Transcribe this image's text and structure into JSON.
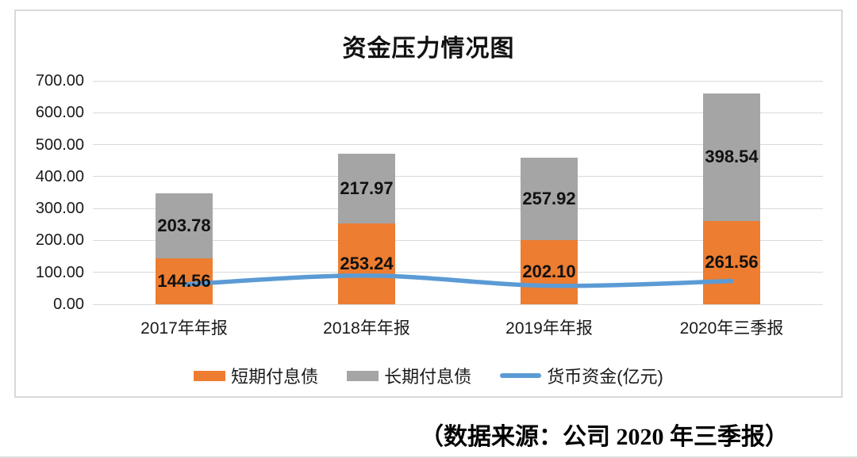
{
  "chart_data": {
    "type": "bar",
    "subtype": "stacked-bar-with-line-overlay",
    "title": "资金压力情况图",
    "categories": [
      "2017年年报",
      "2018年年报",
      "2019年年报",
      "2020年三季报"
    ],
    "series": [
      {
        "name": "短期付息债",
        "type": "bar",
        "color": "#ED7D31",
        "values": [
          144.56,
          253.24,
          202.1,
          261.56
        ]
      },
      {
        "name": "长期付息债",
        "type": "bar",
        "color": "#A5A5A5",
        "values": [
          203.78,
          217.97,
          257.92,
          398.54
        ]
      },
      {
        "name": "货币资金(亿元)",
        "type": "line",
        "color": "#5B9BD5",
        "values": [
          62,
          90,
          58,
          73
        ]
      }
    ],
    "stacked": true,
    "data_labels": true,
    "data_label_format": "2-decimals",
    "ylim": [
      0,
      700
    ],
    "yticks": [
      "0.00",
      "100.00",
      "200.00",
      "300.00",
      "400.00",
      "500.00",
      "600.00",
      "700.00"
    ],
    "grid": true,
    "legend_position": "bottom"
  },
  "page": {
    "source_note": "（数据来源：公司 2020 年三季报）"
  },
  "colors": {
    "grid": "#D9D9D9",
    "frame": "#D9D9D9",
    "axis_text": "#1A1A1A",
    "label_text": "#111111"
  }
}
